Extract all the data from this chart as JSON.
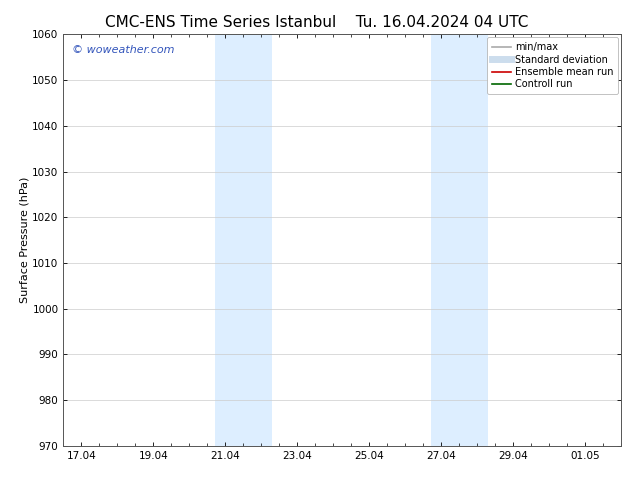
{
  "title_left": "CMC-ENS Time Series Istanbul",
  "title_right": "Tu. 16.04.2024 04 UTC",
  "ylabel": "Surface Pressure (hPa)",
  "ylim": [
    970,
    1060
  ],
  "yticks": [
    970,
    980,
    990,
    1000,
    1010,
    1020,
    1030,
    1040,
    1050,
    1060
  ],
  "xtick_labels": [
    "17.04",
    "19.04",
    "21.04",
    "23.04",
    "25.04",
    "27.04",
    "29.04",
    "01.05"
  ],
  "xtick_positions": [
    0,
    2,
    4,
    6,
    8,
    10,
    12,
    14
  ],
  "xmin": -0.5,
  "xmax": 15.0,
  "shade_regions": [
    {
      "x_start": 3.7,
      "x_end": 5.3
    },
    {
      "x_start": 9.7,
      "x_end": 11.3
    }
  ],
  "shade_color": "#ddeeff",
  "background_color": "#ffffff",
  "watermark_text": "© woweather.com",
  "watermark_color": "#3355bb",
  "legend_items": [
    {
      "label": "min/max",
      "color": "#aaaaaa",
      "lw": 1.2,
      "style": "solid"
    },
    {
      "label": "Standard deviation",
      "color": "#ccdded",
      "lw": 5,
      "style": "solid"
    },
    {
      "label": "Ensemble mean run",
      "color": "#cc0000",
      "lw": 1.2,
      "style": "solid"
    },
    {
      "label": "Controll run",
      "color": "#006600",
      "lw": 1.2,
      "style": "solid"
    }
  ],
  "title_fontsize": 11,
  "ylabel_fontsize": 8,
  "tick_fontsize": 7.5,
  "legend_fontsize": 7,
  "watermark_fontsize": 8
}
